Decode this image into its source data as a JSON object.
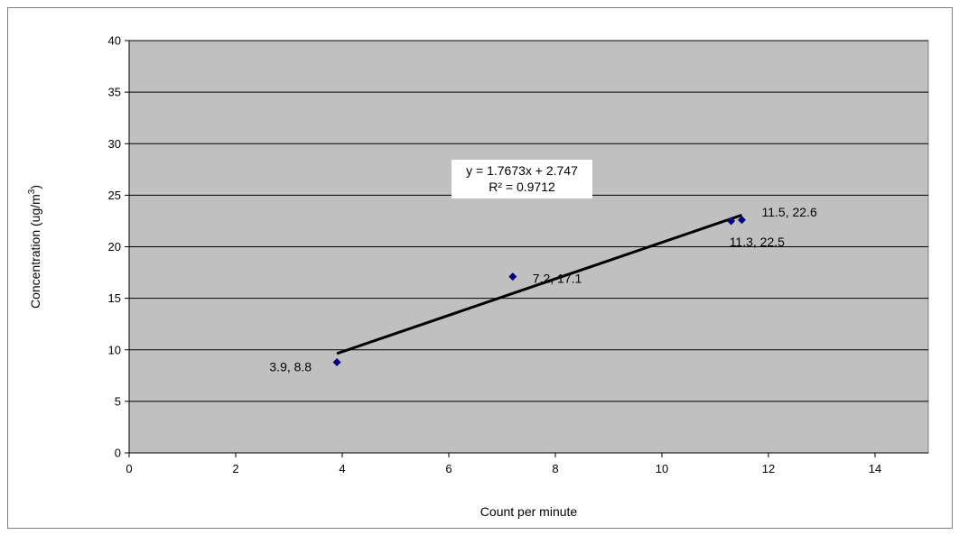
{
  "chart_data": {
    "type": "scatter",
    "title": "",
    "xlabel": "Count per minute",
    "ylabel_main": "Concentration (ug/m",
    "ylabel_sup": "3",
    "ylabel_end": ")",
    "xlim": [
      0,
      15
    ],
    "ylim": [
      0,
      40
    ],
    "x_ticks": [
      0,
      2,
      4,
      6,
      8,
      10,
      12,
      14
    ],
    "y_ticks": [
      0,
      5,
      10,
      15,
      20,
      25,
      30,
      35,
      40
    ],
    "grid": "horizontal",
    "legend": "none",
    "plot_background": "#c0c0c0",
    "marker_color": "#000080",
    "trend_color": "#000000",
    "points": [
      {
        "x": 3.9,
        "y": 8.8,
        "label": "3.9, 8.8"
      },
      {
        "x": 7.2,
        "y": 17.1,
        "label": "7.2, 17.1"
      },
      {
        "x": 11.3,
        "y": 22.5,
        "label": "11.3, 22.5"
      },
      {
        "x": 11.5,
        "y": 22.6,
        "label": "11.5, 22.6"
      }
    ],
    "trendline": {
      "slope": 1.7673,
      "intercept": 2.747,
      "x_range": [
        3.9,
        11.5
      ],
      "equation": "y = 1.7673x + 2.747",
      "r_squared": "R² = 0.9712"
    }
  }
}
